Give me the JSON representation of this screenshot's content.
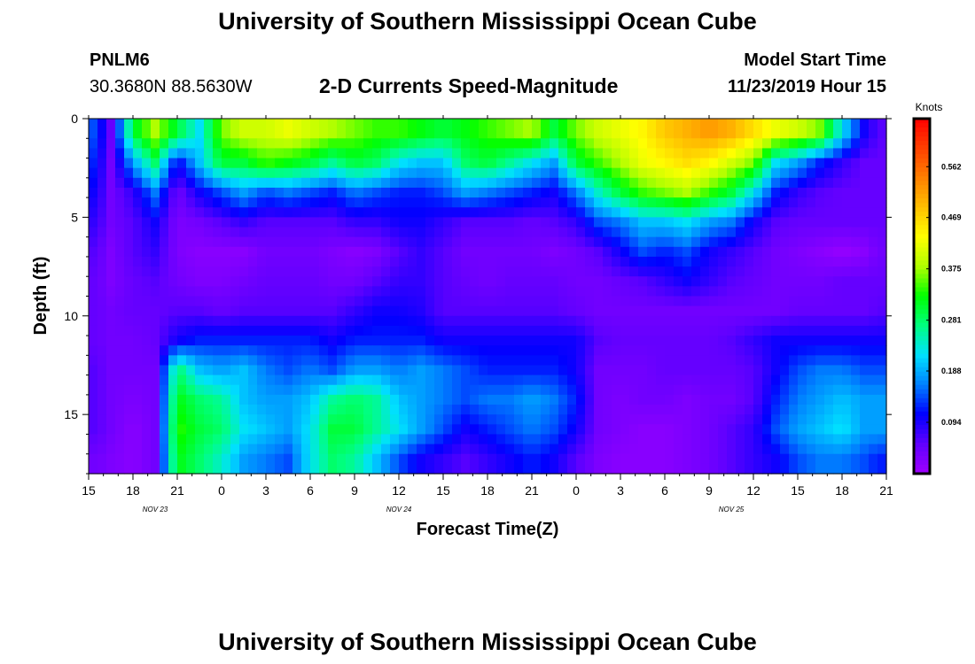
{
  "header": {
    "title": "University of Southern Mississippi Ocean Cube",
    "station_id": "PNLM6",
    "coordinates": "30.3680N 88.5630W",
    "plot_title": "2-D Currents Speed-Magnitude",
    "model_start_label": "Model Start Time",
    "model_start_value": "11/23/2019 Hour 15"
  },
  "footer": {
    "title": "University of Southern Mississippi Ocean Cube"
  },
  "chart_data": {
    "type": "heatmap",
    "title": "2-D Currents Speed-Magnitude",
    "xlabel": "Forecast Time(Z)",
    "ylabel": "Depth (ft)",
    "x_hours": [
      0,
      54
    ],
    "x_tick_hours": [
      0,
      3,
      6,
      9,
      12,
      15,
      18,
      21,
      24,
      27,
      30,
      33,
      36,
      39,
      42,
      45,
      48,
      51,
      54
    ],
    "x_tick_labels": [
      "15",
      "18",
      "21",
      "0",
      "3",
      "6",
      "9",
      "12",
      "15",
      "18",
      "21",
      "0",
      "3",
      "6",
      "9",
      "12",
      "15",
      "18",
      "21"
    ],
    "date_labels": [
      {
        "text": "NOV  23",
        "hour": 4.5
      },
      {
        "text": "NOV  24",
        "hour": 21
      },
      {
        "text": "NOV  25",
        "hour": 43.5
      }
    ],
    "y_range": [
      0,
      18
    ],
    "y_ticks": [
      0,
      5,
      10,
      15
    ],
    "y_tick_labels": [
      "0",
      "5",
      "10",
      "15"
    ],
    "colorbar": {
      "units": "Knots",
      "range": [
        0,
        0.65
      ],
      "ticks": [
        0.094,
        0.188,
        0.281,
        0.375,
        0.469,
        0.562
      ],
      "tick_labels": [
        "0.094",
        "0.188",
        "0.281",
        "0.375",
        "0.469",
        "0.562"
      ],
      "colors": [
        "#a000ff",
        "#6000ff",
        "#0000ff",
        "#0080ff",
        "#00e0ff",
        "#00ff80",
        "#00ff00",
        "#b0ff00",
        "#ffff00",
        "#ffc000",
        "#ff8000",
        "#ff4000",
        "#ff0000"
      ]
    },
    "speed_grid_knots": {
      "depths_ft": [
        0.75,
        2.25,
        3.75,
        5.25,
        6.75,
        8.25,
        9.75,
        11.25,
        12.75,
        14.25,
        15.75,
        17.25
      ],
      "hours": [
        0.5,
        1.5,
        3,
        4.5,
        6,
        7.5,
        9,
        10.5,
        12,
        13.5,
        15,
        16.5,
        18,
        19.5,
        21,
        22.5,
        24,
        25.5,
        27,
        28.5,
        30,
        31.5,
        33,
        34.5,
        36,
        37.5,
        39,
        40.5,
        42,
        43.5,
        45,
        46.5,
        48,
        49.5,
        51,
        52.5,
        53.5
      ],
      "rows": [
        [
          0.14,
          0.05,
          0.3,
          0.38,
          0.3,
          0.22,
          0.36,
          0.4,
          0.4,
          0.42,
          0.4,
          0.38,
          0.36,
          0.34,
          0.34,
          0.32,
          0.3,
          0.32,
          0.34,
          0.36,
          0.38,
          0.3,
          0.36,
          0.4,
          0.42,
          0.44,
          0.48,
          0.5,
          0.52,
          0.5,
          0.46,
          0.42,
          0.4,
          0.36,
          0.22,
          0.1,
          0.06
        ],
        [
          0.12,
          0.04,
          0.18,
          0.28,
          0.1,
          0.2,
          0.3,
          0.3,
          0.34,
          0.32,
          0.3,
          0.26,
          0.3,
          0.28,
          0.22,
          0.2,
          0.2,
          0.28,
          0.3,
          0.26,
          0.22,
          0.18,
          0.3,
          0.34,
          0.38,
          0.42,
          0.44,
          0.46,
          0.44,
          0.4,
          0.36,
          0.22,
          0.18,
          0.12,
          0.08,
          0.05,
          0.05
        ],
        [
          0.1,
          0.04,
          0.08,
          0.16,
          0.04,
          0.1,
          0.14,
          0.18,
          0.14,
          0.16,
          0.14,
          0.12,
          0.16,
          0.14,
          0.12,
          0.12,
          0.14,
          0.18,
          0.16,
          0.14,
          0.12,
          0.1,
          0.16,
          0.24,
          0.3,
          0.34,
          0.36,
          0.38,
          0.34,
          0.3,
          0.22,
          0.12,
          0.08,
          0.06,
          0.05,
          0.05,
          0.05
        ],
        [
          0.08,
          0.04,
          0.06,
          0.1,
          0.03,
          0.04,
          0.06,
          0.08,
          0.06,
          0.06,
          0.06,
          0.06,
          0.08,
          0.08,
          0.1,
          0.1,
          0.08,
          0.06,
          0.06,
          0.06,
          0.05,
          0.06,
          0.08,
          0.14,
          0.16,
          0.2,
          0.2,
          0.22,
          0.18,
          0.16,
          0.1,
          0.06,
          0.05,
          0.05,
          0.05,
          0.05,
          0.05
        ],
        [
          0.06,
          0.03,
          0.06,
          0.08,
          0.03,
          0.02,
          0.02,
          0.02,
          0.04,
          0.04,
          0.04,
          0.03,
          0.02,
          0.03,
          0.06,
          0.08,
          0.06,
          0.04,
          0.04,
          0.04,
          0.04,
          0.03,
          0.04,
          0.06,
          0.1,
          0.14,
          0.12,
          0.14,
          0.1,
          0.08,
          0.06,
          0.04,
          0.03,
          0.02,
          0.01,
          0.02,
          0.04
        ],
        [
          0.05,
          0.03,
          0.05,
          0.06,
          0.04,
          0.03,
          0.03,
          0.04,
          0.05,
          0.05,
          0.05,
          0.04,
          0.04,
          0.06,
          0.08,
          0.08,
          0.06,
          0.05,
          0.04,
          0.05,
          0.05,
          0.05,
          0.04,
          0.04,
          0.05,
          0.06,
          0.08,
          0.1,
          0.08,
          0.06,
          0.05,
          0.04,
          0.04,
          0.04,
          0.05,
          0.05,
          0.05
        ],
        [
          0.05,
          0.04,
          0.05,
          0.05,
          0.06,
          0.06,
          0.05,
          0.06,
          0.06,
          0.06,
          0.06,
          0.06,
          0.08,
          0.1,
          0.1,
          0.09,
          0.06,
          0.06,
          0.06,
          0.06,
          0.06,
          0.06,
          0.05,
          0.04,
          0.04,
          0.04,
          0.04,
          0.04,
          0.04,
          0.04,
          0.04,
          0.04,
          0.05,
          0.05,
          0.05,
          0.05,
          0.06
        ],
        [
          0.05,
          0.04,
          0.04,
          0.05,
          0.1,
          0.12,
          0.12,
          0.12,
          0.12,
          0.12,
          0.12,
          0.1,
          0.12,
          0.12,
          0.12,
          0.12,
          0.1,
          0.1,
          0.1,
          0.1,
          0.1,
          0.1,
          0.1,
          0.06,
          0.05,
          0.05,
          0.05,
          0.05,
          0.05,
          0.06,
          0.08,
          0.1,
          0.1,
          0.1,
          0.1,
          0.1,
          0.1
        ],
        [
          0.06,
          0.04,
          0.04,
          0.04,
          0.28,
          0.2,
          0.18,
          0.2,
          0.16,
          0.14,
          0.16,
          0.14,
          0.18,
          0.18,
          0.16,
          0.18,
          0.16,
          0.14,
          0.12,
          0.12,
          0.12,
          0.12,
          0.1,
          0.04,
          0.04,
          0.04,
          0.05,
          0.05,
          0.05,
          0.05,
          0.06,
          0.1,
          0.14,
          0.16,
          0.16,
          0.14,
          0.14
        ],
        [
          0.06,
          0.04,
          0.03,
          0.04,
          0.32,
          0.28,
          0.26,
          0.2,
          0.18,
          0.18,
          0.2,
          0.26,
          0.28,
          0.26,
          0.2,
          0.18,
          0.16,
          0.14,
          0.16,
          0.16,
          0.18,
          0.16,
          0.12,
          0.04,
          0.03,
          0.04,
          0.04,
          0.03,
          0.04,
          0.04,
          0.06,
          0.12,
          0.16,
          0.18,
          0.2,
          0.18,
          0.18
        ],
        [
          0.06,
          0.04,
          0.02,
          0.04,
          0.34,
          0.3,
          0.28,
          0.22,
          0.2,
          0.18,
          0.22,
          0.3,
          0.3,
          0.26,
          0.22,
          0.18,
          0.14,
          0.1,
          0.12,
          0.14,
          0.16,
          0.14,
          0.1,
          0.04,
          0.03,
          0.02,
          0.02,
          0.03,
          0.04,
          0.06,
          0.08,
          0.14,
          0.18,
          0.2,
          0.22,
          0.18,
          0.18
        ],
        [
          0.04,
          0.03,
          0.02,
          0.04,
          0.32,
          0.28,
          0.24,
          0.18,
          0.16,
          0.14,
          0.22,
          0.28,
          0.26,
          0.2,
          0.14,
          0.1,
          0.08,
          0.06,
          0.08,
          0.1,
          0.12,
          0.1,
          0.06,
          0.03,
          0.02,
          0.02,
          0.02,
          0.03,
          0.04,
          0.06,
          0.08,
          0.1,
          0.14,
          0.16,
          0.16,
          0.14,
          0.12
        ]
      ]
    }
  }
}
